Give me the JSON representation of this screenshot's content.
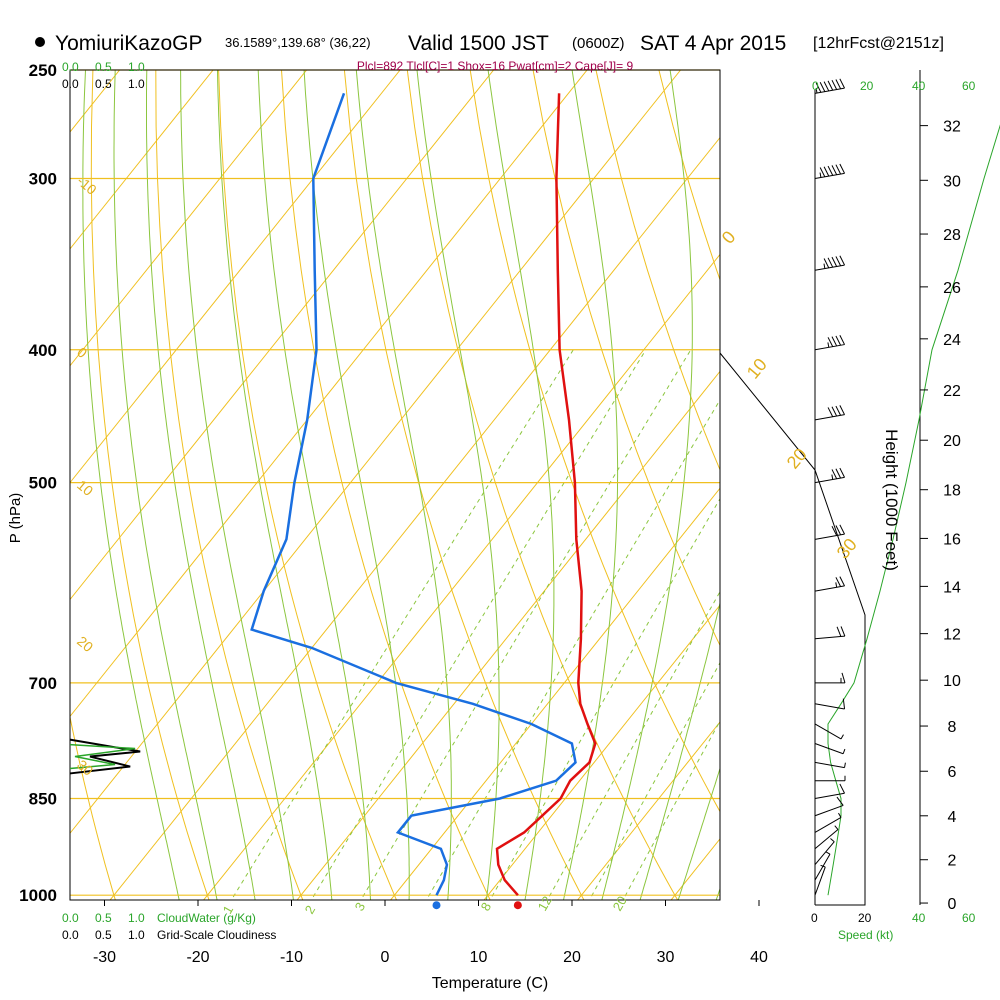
{
  "header": {
    "station": "YomiuriKazoGP",
    "coords": "36.1589°,139.68° (36,22)",
    "valid_prefix": "Valid 1500 JST",
    "zulu": "(0600Z)",
    "date": "SAT 4 Apr 2015",
    "forecast": "[12hrFcst@2151z]",
    "indices": "Plcl=892 Tlcl[C]=1 Shox=16 Pwat[cm]=2 Cape[J]= 9"
  },
  "labels": {
    "cloudwater": "CloudWater (g/Kg)",
    "cloudiness": "Grid-Scale Cloudiness",
    "speed": "Speed (kt)",
    "height_axis": "Height (1000 Feet)",
    "cw_top": [
      "0.0",
      "0.5",
      "1.0"
    ],
    "cl_top": [
      "0.0",
      "0.5",
      "1.0"
    ],
    "cw_bottom": [
      "0.0",
      "0.5",
      "1.0"
    ],
    "cl_bottom": [
      "0.0",
      "0.5",
      "1.0"
    ],
    "speed_black": [
      "0",
      "20",
      "40"
    ],
    "speed_green": [
      "0",
      "20",
      "40",
      "60"
    ]
  },
  "colors": {
    "temperature": "#e01010",
    "dewpoint": "#1a6fe0",
    "isobar": "#f0c020",
    "isotherm": "#f0c020",
    "dry_adiabat": "#f0c020",
    "moist_adiabat": "#8cc63f",
    "mixing_ratio": "#8cc63f",
    "cloudwater": "#2aa52a",
    "wind_profile": "#2aa52a"
  },
  "chart_data": {
    "type": "skew-t",
    "title": "YomiuriKazoGP Valid 1500 JST (0600Z) SAT 4 Apr 2015",
    "xlabel": "Temperature (C)",
    "ylabel": "P (hPa)",
    "y2label": "Height (1000 Feet)",
    "xlim": [
      -35,
      35
    ],
    "ylim": [
      1050,
      250
    ],
    "x_ticks": [
      -30,
      -20,
      -10,
      0,
      10,
      20,
      30,
      40
    ],
    "pressure_ticks": [
      250,
      300,
      400,
      500,
      700,
      850,
      1000
    ],
    "height_ticks": [
      0,
      2,
      4,
      6,
      8,
      10,
      12,
      14,
      16,
      18,
      20,
      22,
      24,
      26,
      28,
      30,
      32
    ],
    "temperature_profile": [
      {
        "p": 1000,
        "t": 13.2
      },
      {
        "p": 975,
        "t": 10.5
      },
      {
        "p": 950,
        "t": 8.5
      },
      {
        "p": 925,
        "t": 7.0
      },
      {
        "p": 900,
        "t": 8.5
      },
      {
        "p": 875,
        "t": 9.0
      },
      {
        "p": 850,
        "t": 9.5
      },
      {
        "p": 825,
        "t": 9.0
      },
      {
        "p": 800,
        "t": 9.5
      },
      {
        "p": 775,
        "t": 8.5
      },
      {
        "p": 750,
        "t": 6.0
      },
      {
        "p": 725,
        "t": 3.5
      },
      {
        "p": 700,
        "t": 1.5
      },
      {
        "p": 650,
        "t": -2.0
      },
      {
        "p": 600,
        "t": -6.0
      },
      {
        "p": 550,
        "t": -11.0
      },
      {
        "p": 500,
        "t": -16.0
      },
      {
        "p": 450,
        "t": -22.0
      },
      {
        "p": 400,
        "t": -29.0
      },
      {
        "p": 350,
        "t": -36.0
      },
      {
        "p": 300,
        "t": -44.0
      },
      {
        "p": 260,
        "t": -51.0
      }
    ],
    "dewpoint_profile": [
      {
        "p": 1000,
        "td": 4.5
      },
      {
        "p": 975,
        "td": 4.0
      },
      {
        "p": 950,
        "td": 3.0
      },
      {
        "p": 925,
        "td": 1.0
      },
      {
        "p": 900,
        "td": -5.0
      },
      {
        "p": 875,
        "td": -5.0
      },
      {
        "p": 850,
        "td": 3.0
      },
      {
        "p": 825,
        "td": 7.5
      },
      {
        "p": 800,
        "td": 8.0
      },
      {
        "p": 775,
        "td": 6.0
      },
      {
        "p": 750,
        "td": 0.0
      },
      {
        "p": 725,
        "td": -8.0
      },
      {
        "p": 700,
        "td": -18.0
      },
      {
        "p": 660,
        "td": -30.0
      },
      {
        "p": 640,
        "td": -38.0
      },
      {
        "p": 600,
        "td": -40.0
      },
      {
        "p": 550,
        "td": -42.0
      },
      {
        "p": 500,
        "td": -46.0
      },
      {
        "p": 450,
        "td": -50.0
      },
      {
        "p": 400,
        "td": -55.0
      },
      {
        "p": 350,
        "td": -62.0
      },
      {
        "p": 300,
        "td": -70.0
      },
      {
        "p": 260,
        "td": -74.0
      }
    ],
    "surface_temperature": 13.2,
    "surface_dewpoint": 4.5,
    "isotherm_labels": [
      -10,
      0,
      10,
      20,
      30
    ],
    "dry_adiabat_labels": [
      10,
      0,
      -10,
      -20,
      -30
    ],
    "mixing_ratio_labels": [
      1,
      2,
      3,
      8,
      12,
      20
    ],
    "wind_profile": [
      {
        "p": 1000,
        "spd": 5,
        "dir": 200
      },
      {
        "p": 975,
        "spd": 6,
        "dir": 210
      },
      {
        "p": 950,
        "spd": 7,
        "dir": 220
      },
      {
        "p": 925,
        "spd": 8,
        "dir": 230
      },
      {
        "p": 900,
        "spd": 9,
        "dir": 240
      },
      {
        "p": 875,
        "spd": 10,
        "dir": 250
      },
      {
        "p": 850,
        "spd": 10,
        "dir": 260
      },
      {
        "p": 825,
        "spd": 8,
        "dir": 270
      },
      {
        "p": 800,
        "spd": 6,
        "dir": 280
      },
      {
        "p": 775,
        "spd": 5,
        "dir": 290
      },
      {
        "p": 750,
        "spd": 5,
        "dir": 300
      },
      {
        "p": 725,
        "spd": 10,
        "dir": 280
      },
      {
        "p": 700,
        "spd": 15,
        "dir": 270
      },
      {
        "p": 650,
        "spd": 20,
        "dir": 265
      },
      {
        "p": 600,
        "spd": 25,
        "dir": 260
      },
      {
        "p": 550,
        "spd": 30,
        "dir": 260
      },
      {
        "p": 500,
        "spd": 35,
        "dir": 260
      },
      {
        "p": 450,
        "spd": 40,
        "dir": 260
      },
      {
        "p": 400,
        "spd": 45,
        "dir": 260
      },
      {
        "p": 350,
        "spd": 55,
        "dir": 260
      },
      {
        "p": 300,
        "spd": 65,
        "dir": 260
      },
      {
        "p": 260,
        "spd": 75,
        "dir": 260
      }
    ],
    "cloud_layers": [
      {
        "p_top": 770,
        "p_bottom": 815,
        "cloudiness": 0.6,
        "cloudwater": 0.3
      }
    ]
  }
}
